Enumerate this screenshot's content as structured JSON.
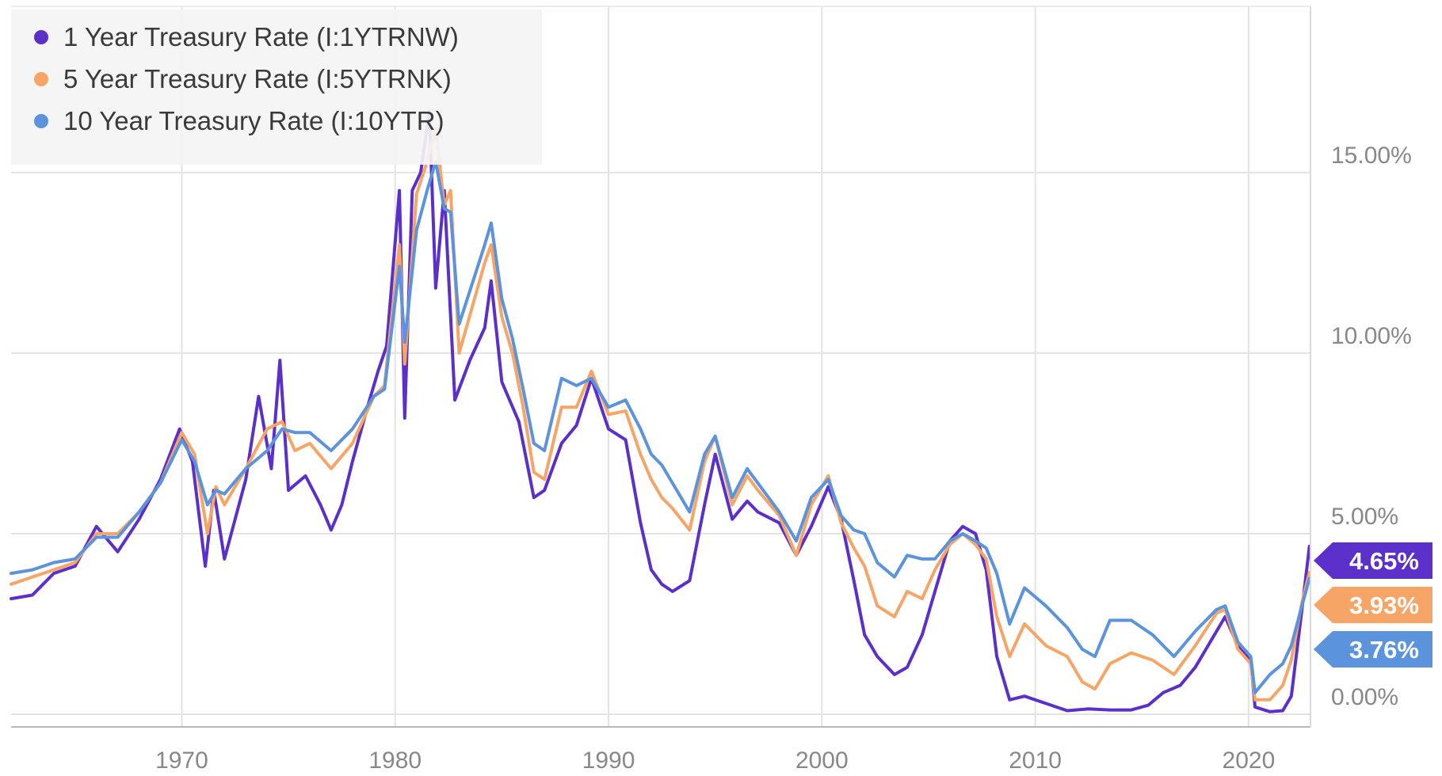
{
  "chart_data": {
    "type": "line",
    "title": "",
    "xlabel": "",
    "ylabel": "",
    "xlim": [
      1962,
      2022.9
    ],
    "ylim": [
      -0.35,
      19.6
    ],
    "grid": true,
    "x_ticks": [
      {
        "value": 1970,
        "label": "1970"
      },
      {
        "value": 1980,
        "label": "1980"
      },
      {
        "value": 1990,
        "label": "1990"
      },
      {
        "value": 2000,
        "label": "2000"
      },
      {
        "value": 2010,
        "label": "2010"
      },
      {
        "value": 2020,
        "label": "2020"
      }
    ],
    "y_ticks": [
      {
        "value": 0,
        "label": "0.00%"
      },
      {
        "value": 5,
        "label": "5.00%"
      },
      {
        "value": 10,
        "label": "10.00%"
      },
      {
        "value": 15,
        "label": "15.00%"
      }
    ],
    "legend_position": "top-left",
    "series": [
      {
        "name": "1 Year Treasury Rate (I:1YTRNW)",
        "color": "#5b2fc9",
        "last_label": "4.65%",
        "points": [
          [
            1962,
            3.2
          ],
          [
            1963,
            3.3
          ],
          [
            1964,
            3.9
          ],
          [
            1965,
            4.1
          ],
          [
            1966,
            5.2
          ],
          [
            1967,
            4.5
          ],
          [
            1968,
            5.4
          ],
          [
            1969,
            6.5
          ],
          [
            1969.9,
            7.9
          ],
          [
            1970.5,
            7.0
          ],
          [
            1971.1,
            4.1
          ],
          [
            1971.5,
            6.2
          ],
          [
            1972,
            4.3
          ],
          [
            1973,
            6.5
          ],
          [
            1973.6,
            8.8
          ],
          [
            1974.2,
            6.8
          ],
          [
            1974.6,
            9.8
          ],
          [
            1975,
            6.2
          ],
          [
            1975.8,
            6.6
          ],
          [
            1976.5,
            5.8
          ],
          [
            1977,
            5.1
          ],
          [
            1977.5,
            5.8
          ],
          [
            1978,
            7.0
          ],
          [
            1978.7,
            8.5
          ],
          [
            1979.2,
            9.5
          ],
          [
            1979.6,
            10.2
          ],
          [
            1980.2,
            14.5
          ],
          [
            1980.45,
            8.2
          ],
          [
            1980.8,
            14.5
          ],
          [
            1981.2,
            15.0
          ],
          [
            1981.6,
            16.7
          ],
          [
            1981.9,
            11.8
          ],
          [
            1982.3,
            14.5
          ],
          [
            1982.8,
            8.7
          ],
          [
            1983.5,
            9.8
          ],
          [
            1984.2,
            10.7
          ],
          [
            1984.5,
            12.0
          ],
          [
            1985,
            9.2
          ],
          [
            1985.8,
            8.1
          ],
          [
            1986.5,
            6.0
          ],
          [
            1987,
            6.2
          ],
          [
            1987.8,
            7.5
          ],
          [
            1988.5,
            8.0
          ],
          [
            1989.2,
            9.3
          ],
          [
            1990,
            7.9
          ],
          [
            1990.8,
            7.6
          ],
          [
            1991.5,
            5.3
          ],
          [
            1992,
            4.0
          ],
          [
            1992.5,
            3.6
          ],
          [
            1993,
            3.4
          ],
          [
            1993.8,
            3.7
          ],
          [
            1994.5,
            5.8
          ],
          [
            1995,
            7.2
          ],
          [
            1995.8,
            5.4
          ],
          [
            1996.5,
            5.9
          ],
          [
            1997,
            5.6
          ],
          [
            1998,
            5.3
          ],
          [
            1998.8,
            4.4
          ],
          [
            1999.5,
            5.2
          ],
          [
            2000.3,
            6.3
          ],
          [
            2000.9,
            5.4
          ],
          [
            2001.5,
            3.7
          ],
          [
            2002,
            2.2
          ],
          [
            2002.6,
            1.6
          ],
          [
            2003.4,
            1.1
          ],
          [
            2004,
            1.3
          ],
          [
            2004.7,
            2.2
          ],
          [
            2005.3,
            3.4
          ],
          [
            2006,
            4.8
          ],
          [
            2006.6,
            5.2
          ],
          [
            2007.2,
            5.0
          ],
          [
            2007.7,
            4.0
          ],
          [
            2008.2,
            1.6
          ],
          [
            2008.8,
            0.4
          ],
          [
            2009.5,
            0.5
          ],
          [
            2010.5,
            0.3
          ],
          [
            2011.5,
            0.1
          ],
          [
            2012.5,
            0.15
          ],
          [
            2013.5,
            0.12
          ],
          [
            2014.5,
            0.12
          ],
          [
            2015.3,
            0.25
          ],
          [
            2016,
            0.6
          ],
          [
            2016.8,
            0.8
          ],
          [
            2017.5,
            1.3
          ],
          [
            2018.5,
            2.3
          ],
          [
            2018.9,
            2.7
          ],
          [
            2019.5,
            1.9
          ],
          [
            2020.1,
            1.5
          ],
          [
            2020.3,
            0.2
          ],
          [
            2021,
            0.07
          ],
          [
            2021.6,
            0.1
          ],
          [
            2022,
            0.5
          ],
          [
            2022.5,
            2.9
          ],
          [
            2022.85,
            4.65
          ]
        ]
      },
      {
        "name": "5 Year Treasury Rate (I:5YTRNK)",
        "color": "#f7a566",
        "last_label": "3.93%",
        "points": [
          [
            1962,
            3.6
          ],
          [
            1963,
            3.8
          ],
          [
            1964,
            4.0
          ],
          [
            1965,
            4.2
          ],
          [
            1966,
            5.0
          ],
          [
            1967,
            5.0
          ],
          [
            1968,
            5.6
          ],
          [
            1969,
            6.4
          ],
          [
            1970,
            7.8
          ],
          [
            1970.6,
            7.2
          ],
          [
            1971.2,
            5.0
          ],
          [
            1971.6,
            6.3
          ],
          [
            1972,
            5.8
          ],
          [
            1973,
            6.8
          ],
          [
            1974,
            7.9
          ],
          [
            1974.7,
            8.1
          ],
          [
            1975.3,
            7.3
          ],
          [
            1976,
            7.5
          ],
          [
            1977,
            6.8
          ],
          [
            1978,
            7.5
          ],
          [
            1979,
            8.8
          ],
          [
            1979.5,
            9.1
          ],
          [
            1980.2,
            13.0
          ],
          [
            1980.45,
            9.7
          ],
          [
            1981,
            14.4
          ],
          [
            1981.5,
            15.3
          ],
          [
            1981.9,
            16.2
          ],
          [
            1982.3,
            14.1
          ],
          [
            1982.6,
            14.5
          ],
          [
            1983,
            10.0
          ],
          [
            1984.2,
            12.5
          ],
          [
            1984.5,
            13.0
          ],
          [
            1985,
            11.0
          ],
          [
            1985.5,
            10.0
          ],
          [
            1986,
            8.5
          ],
          [
            1986.5,
            6.7
          ],
          [
            1987,
            6.5
          ],
          [
            1987.8,
            8.5
          ],
          [
            1988.5,
            8.5
          ],
          [
            1989.2,
            9.5
          ],
          [
            1990,
            8.3
          ],
          [
            1990.8,
            8.4
          ],
          [
            1991.5,
            7.2
          ],
          [
            1992,
            6.5
          ],
          [
            1992.5,
            6.0
          ],
          [
            1993,
            5.7
          ],
          [
            1993.8,
            5.1
          ],
          [
            1994.5,
            7.0
          ],
          [
            1995,
            7.7
          ],
          [
            1995.8,
            5.8
          ],
          [
            1996.5,
            6.6
          ],
          [
            1997,
            6.2
          ],
          [
            1998,
            5.5
          ],
          [
            1998.8,
            4.4
          ],
          [
            1999.5,
            5.8
          ],
          [
            2000.3,
            6.6
          ],
          [
            2000.9,
            5.3
          ],
          [
            2001.5,
            4.6
          ],
          [
            2002,
            4.1
          ],
          [
            2002.6,
            3.0
          ],
          [
            2003.4,
            2.7
          ],
          [
            2004,
            3.4
          ],
          [
            2004.7,
            3.2
          ],
          [
            2005.3,
            4.0
          ],
          [
            2006,
            4.7
          ],
          [
            2006.6,
            5.0
          ],
          [
            2007.2,
            4.7
          ],
          [
            2007.7,
            4.3
          ],
          [
            2008.2,
            2.7
          ],
          [
            2008.8,
            1.6
          ],
          [
            2009.5,
            2.5
          ],
          [
            2010.5,
            1.9
          ],
          [
            2011.5,
            1.6
          ],
          [
            2012.2,
            0.9
          ],
          [
            2012.8,
            0.7
          ],
          [
            2013.5,
            1.4
          ],
          [
            2014.5,
            1.7
          ],
          [
            2015.5,
            1.5
          ],
          [
            2016.5,
            1.1
          ],
          [
            2017.5,
            1.9
          ],
          [
            2018.5,
            2.8
          ],
          [
            2018.9,
            2.9
          ],
          [
            2019.5,
            1.8
          ],
          [
            2020.1,
            1.4
          ],
          [
            2020.3,
            0.4
          ],
          [
            2021,
            0.4
          ],
          [
            2021.6,
            0.8
          ],
          [
            2022,
            1.5
          ],
          [
            2022.5,
            3.1
          ],
          [
            2022.85,
            3.93
          ]
        ]
      },
      {
        "name": "10 Year Treasury Rate (I:10YTR)",
        "color": "#5b93dc",
        "last_label": "3.76%",
        "points": [
          [
            1962,
            3.9
          ],
          [
            1963,
            4.0
          ],
          [
            1964,
            4.2
          ],
          [
            1965,
            4.3
          ],
          [
            1966,
            4.9
          ],
          [
            1967,
            4.9
          ],
          [
            1968,
            5.6
          ],
          [
            1969,
            6.4
          ],
          [
            1970,
            7.6
          ],
          [
            1970.6,
            7.0
          ],
          [
            1971.2,
            5.8
          ],
          [
            1971.6,
            6.2
          ],
          [
            1972,
            6.1
          ],
          [
            1973,
            6.8
          ],
          [
            1974,
            7.3
          ],
          [
            1974.7,
            7.9
          ],
          [
            1975.3,
            7.8
          ],
          [
            1976,
            7.8
          ],
          [
            1977,
            7.3
          ],
          [
            1978,
            7.9
          ],
          [
            1979,
            8.8
          ],
          [
            1979.5,
            9.0
          ],
          [
            1980.2,
            12.4
          ],
          [
            1980.45,
            10.3
          ],
          [
            1981,
            13.4
          ],
          [
            1981.5,
            14.5
          ],
          [
            1981.9,
            15.3
          ],
          [
            1982.3,
            14.0
          ],
          [
            1982.6,
            13.9
          ],
          [
            1983,
            10.8
          ],
          [
            1984.2,
            13.0
          ],
          [
            1984.5,
            13.6
          ],
          [
            1985,
            11.5
          ],
          [
            1985.5,
            10.4
          ],
          [
            1986,
            9.0
          ],
          [
            1986.5,
            7.5
          ],
          [
            1987,
            7.3
          ],
          [
            1987.8,
            9.3
          ],
          [
            1988.5,
            9.1
          ],
          [
            1989.2,
            9.3
          ],
          [
            1990,
            8.5
          ],
          [
            1990.8,
            8.7
          ],
          [
            1991.5,
            7.9
          ],
          [
            1992,
            7.2
          ],
          [
            1992.5,
            6.9
          ],
          [
            1993,
            6.4
          ],
          [
            1993.8,
            5.6
          ],
          [
            1994.5,
            7.2
          ],
          [
            1995,
            7.7
          ],
          [
            1995.8,
            6.0
          ],
          [
            1996.5,
            6.8
          ],
          [
            1997,
            6.4
          ],
          [
            1998,
            5.6
          ],
          [
            1998.8,
            4.8
          ],
          [
            1999.5,
            6.0
          ],
          [
            2000.3,
            6.5
          ],
          [
            2000.9,
            5.5
          ],
          [
            2001.5,
            5.1
          ],
          [
            2002,
            5.0
          ],
          [
            2002.6,
            4.2
          ],
          [
            2003.4,
            3.8
          ],
          [
            2004,
            4.4
          ],
          [
            2004.7,
            4.3
          ],
          [
            2005.3,
            4.3
          ],
          [
            2006,
            4.8
          ],
          [
            2006.6,
            5.0
          ],
          [
            2007.2,
            4.8
          ],
          [
            2007.7,
            4.6
          ],
          [
            2008.2,
            3.9
          ],
          [
            2008.8,
            2.5
          ],
          [
            2009.5,
            3.5
          ],
          [
            2010.5,
            3.0
          ],
          [
            2011.5,
            2.4
          ],
          [
            2012.2,
            1.8
          ],
          [
            2012.8,
            1.6
          ],
          [
            2013.5,
            2.6
          ],
          [
            2014.5,
            2.6
          ],
          [
            2015.5,
            2.2
          ],
          [
            2016.5,
            1.6
          ],
          [
            2017.5,
            2.3
          ],
          [
            2018.5,
            2.9
          ],
          [
            2018.9,
            3.0
          ],
          [
            2019.5,
            2.0
          ],
          [
            2020.1,
            1.6
          ],
          [
            2020.3,
            0.6
          ],
          [
            2021,
            1.1
          ],
          [
            2021.6,
            1.4
          ],
          [
            2022,
            1.9
          ],
          [
            2022.5,
            3.0
          ],
          [
            2022.85,
            3.76
          ]
        ]
      }
    ]
  }
}
